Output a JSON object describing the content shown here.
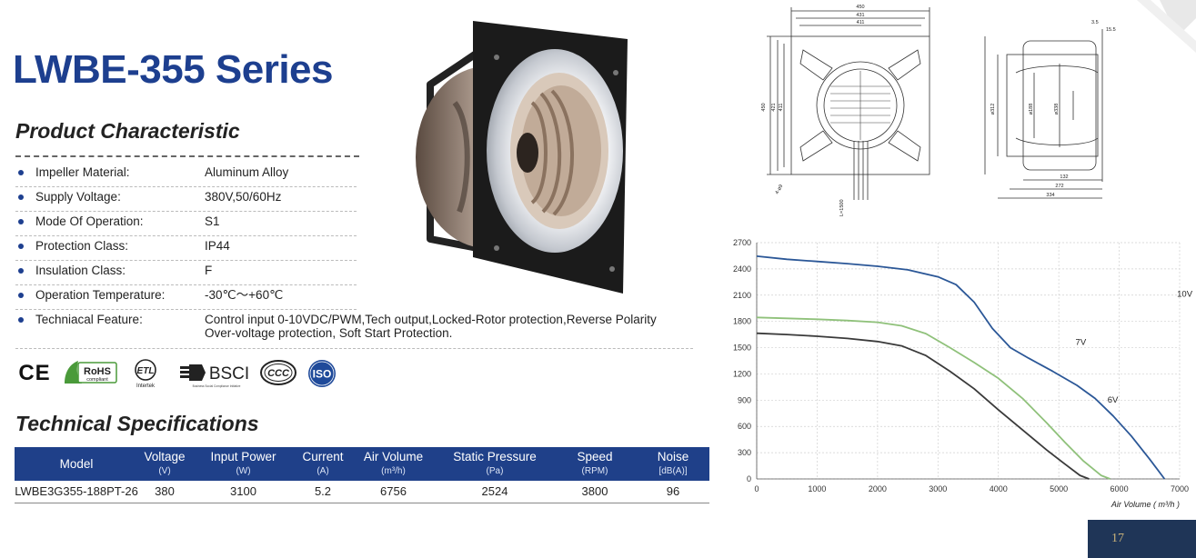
{
  "series_title": "LWBE-355 Series",
  "product_characteristic": {
    "title": "Product Characteristic",
    "items": [
      {
        "label": "Impeller Material:",
        "value": "Aluminum Alloy"
      },
      {
        "label": "Supply Voltage:",
        "value": "380V,50/60Hz"
      },
      {
        "label": "Mode Of Operation:",
        "value": "S1"
      },
      {
        "label": "Protection Class:",
        "value": "IP44"
      },
      {
        "label": "Insulation Class:",
        "value": "F"
      },
      {
        "label": "Operation Temperature:",
        "value": "-30℃～+60℃"
      },
      {
        "label": "Techniacal Feature:",
        "value": "Control input 0-10VDC/PWM,Tech output,Locked-Rotor protection,Reverse Polarity",
        "value2": "Over-voltage protection,  Soft Start Protection."
      }
    ]
  },
  "certifications": {
    "ce": "CE",
    "rohs": "RoHS",
    "rohs_sub": "compliant",
    "etl": "ETL",
    "etl_sub": "Intertek",
    "bsci": "BSCI",
    "bsci_sub": "Business Social Compliance Initiative",
    "ccc": "CCC",
    "iso": "ISO"
  },
  "technical_specifications": {
    "title": "Technical Specifications",
    "columns": [
      {
        "name": "Model",
        "unit": ""
      },
      {
        "name": "Voltage",
        "unit": "(V)"
      },
      {
        "name": "Input Power",
        "unit": "(W)"
      },
      {
        "name": "Current",
        "unit": "(A)"
      },
      {
        "name": "Air Volume",
        "unit": "(m³/h)"
      },
      {
        "name": "Static Pressure",
        "unit": "(Pa)"
      },
      {
        "name": "Speed",
        "unit": "(RPM)"
      },
      {
        "name": "Noise",
        "unit": "[dB(A)]"
      }
    ],
    "rows": [
      [
        "LWBE3G355-188PT-26",
        "380",
        "3100",
        "5.2",
        "6756",
        "2524",
        "3800",
        "96"
      ]
    ]
  },
  "drawing": {
    "front_dims": [
      "450",
      "431",
      "411"
    ],
    "front_side_dims": [
      "450",
      "421",
      "411"
    ],
    "hole": "4-ø9",
    "cable": "L=1500",
    "side_dims_top": [
      "3.5",
      "15.5"
    ],
    "side_dia": [
      "ø312",
      "ø188",
      "ø338"
    ],
    "side_dims_bottom": [
      "132",
      "272",
      "334"
    ]
  },
  "chart_data": {
    "type": "line",
    "xlabel": "Air Volume ( m³/h )",
    "ylabel": "",
    "xlim": [
      0,
      7000
    ],
    "ylim": [
      0,
      2700
    ],
    "x_ticks": [
      "0",
      "1000",
      "2000",
      "3000",
      "4000",
      "5000",
      "6000",
      "7000"
    ],
    "y_ticks": [
      "0",
      "300",
      "600",
      "900",
      "1200",
      "1500",
      "1800",
      "2100",
      "2400",
      "2700"
    ],
    "grid": true,
    "series": [
      {
        "name": "10V",
        "color": "#2b5797",
        "x": [
          0,
          500,
          1000,
          1500,
          2000,
          2500,
          3000,
          3300,
          3600,
          3900,
          4200,
          4500,
          4900,
          5300,
          5600,
          5900,
          6200,
          6500,
          6750
        ],
        "y": [
          2545,
          2510,
          2485,
          2460,
          2430,
          2390,
          2310,
          2220,
          2020,
          1720,
          1500,
          1380,
          1230,
          1070,
          920,
          720,
          490,
          230,
          0
        ]
      },
      {
        "name": "7V",
        "color": "#8fc17a",
        "x": [
          0,
          500,
          1000,
          1500,
          2000,
          2400,
          2800,
          3200,
          3600,
          4000,
          4400,
          4800,
          5100,
          5400,
          5700,
          5850
        ],
        "y": [
          1845,
          1835,
          1825,
          1810,
          1790,
          1750,
          1660,
          1500,
          1330,
          1150,
          920,
          640,
          420,
          210,
          40,
          0
        ]
      },
      {
        "name": "6V",
        "color": "#3a3a3a",
        "x": [
          0,
          500,
          1000,
          1500,
          2000,
          2400,
          2800,
          3200,
          3600,
          4000,
          4400,
          4800,
          5100,
          5350,
          5500
        ],
        "y": [
          1665,
          1650,
          1630,
          1605,
          1570,
          1520,
          1410,
          1230,
          1030,
          790,
          560,
          330,
          170,
          40,
          0
        ]
      }
    ],
    "labels": [
      {
        "text": "10V",
        "x": 5000,
        "y": 2080
      },
      {
        "text": "7V",
        "x": 3320,
        "y": 1530
      },
      {
        "text": "6V",
        "x": 3850,
        "y": 870
      }
    ]
  },
  "page_number": "17"
}
